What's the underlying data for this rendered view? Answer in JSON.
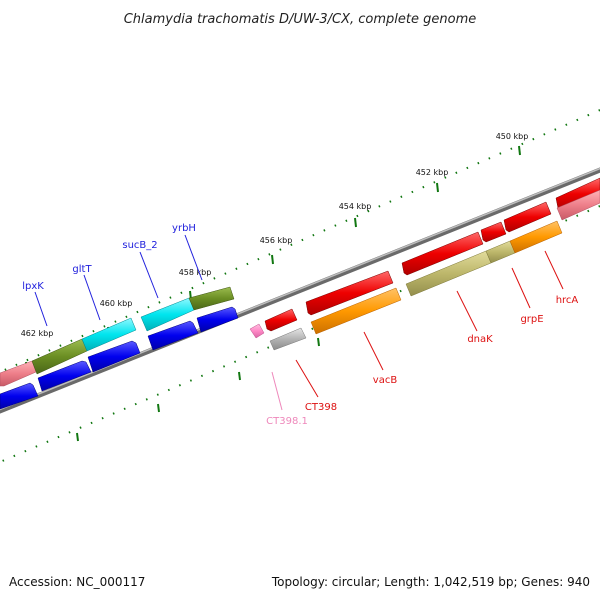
{
  "title": "Chlamydia trachomatis D/UW-3/CX, complete genome",
  "accession": "Accession: NC_000117",
  "topology": "Topology: circular; Length: 1,042,519 bp; Genes: 940",
  "scale_labels": [
    "450 kbp",
    "452 kbp",
    "454 kbp",
    "456 kbp",
    "458 kbp",
    "460 kbp",
    "462 kbp"
  ],
  "genes": [
    {
      "name": "lpxK",
      "strand": "forward",
      "color": "#2222dd"
    },
    {
      "name": "gltT",
      "strand": "forward",
      "color": "#2222dd"
    },
    {
      "name": "sucB_2",
      "strand": "forward",
      "color": "#2222dd"
    },
    {
      "name": "yrbH",
      "strand": "forward",
      "color": "#2222dd"
    },
    {
      "name": "CT398.1",
      "strand": "reverse",
      "color": "#ee88bb"
    },
    {
      "name": "CT398",
      "strand": "reverse",
      "color": "#dd1111"
    },
    {
      "name": "vacB",
      "strand": "reverse",
      "color": "#dd1111"
    },
    {
      "name": "dnaK",
      "strand": "reverse",
      "color": "#dd1111"
    },
    {
      "name": "grpE",
      "strand": "reverse",
      "color": "#dd1111"
    },
    {
      "name": "hrcA",
      "strand": "reverse",
      "color": "#dd1111"
    }
  ],
  "colors": {
    "forward_cds": "#0000ee",
    "reverse_cds": "#ee0000",
    "cyan_feature": "#00e5ee",
    "olive_feature": "#6b8e23",
    "khaki_feature": "#bdb76b",
    "orange_feature": "#ff9900",
    "pink_feature": "#ee7f8a",
    "gray_feature": "#aaaaaa",
    "backbone": "#777777",
    "tick": "#117711"
  }
}
